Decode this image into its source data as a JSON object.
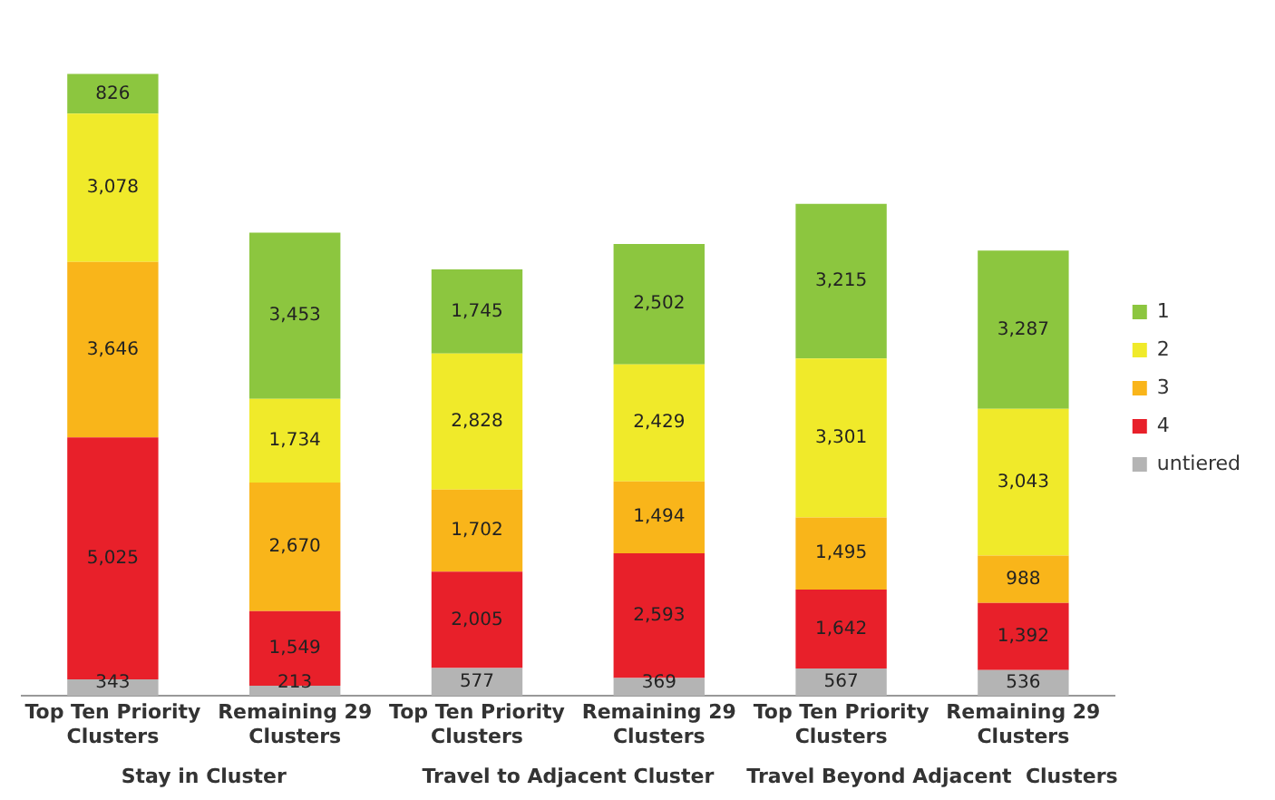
{
  "chart_data": {
    "type": "bar",
    "stacked": true,
    "legend": "right",
    "grid": false,
    "categories": [
      "Top Ten Priority Clusters",
      "Remaining 29 Clusters",
      "Top Ten Priority Clusters",
      "Remaining 29 Clusters",
      "Top Ten Priority Clusters",
      "Remaining 29 Clusters"
    ],
    "annotations": [
      "Stay in Cluster",
      "Travel to Adjacent Cluster",
      "Travel Beyond Adjacent  Clusters"
    ],
    "series": [
      {
        "name": "untiered",
        "color": "#b4b4b4",
        "values": [
          343,
          213,
          577,
          369,
          567,
          536
        ],
        "value_labels": [
          "343",
          "213",
          "577",
          "369",
          "567",
          "536"
        ]
      },
      {
        "name": "4",
        "color": "#e8202a",
        "values": [
          5025,
          1549,
          2005,
          2593,
          1642,
          1392
        ],
        "value_labels": [
          "5,025",
          "1,549",
          "2,005",
          "2,593",
          "1,642",
          "1,392"
        ]
      },
      {
        "name": "3",
        "color": "#f9b51a",
        "values": [
          3646,
          2670,
          1702,
          1494,
          1495,
          988
        ],
        "value_labels": [
          "3,646",
          "2,670",
          "1,702",
          "1,494",
          "1,495",
          "988"
        ]
      },
      {
        "name": "2",
        "color": "#f0ea2a",
        "values": [
          3078,
          1734,
          2828,
          2429,
          3301,
          3043
        ],
        "value_labels": [
          "3,078",
          "1,734",
          "2,828",
          "2,429",
          "3,301",
          "3,043"
        ]
      },
      {
        "name": "1",
        "color": "#8cc63f",
        "values": [
          826,
          3453,
          1745,
          2502,
          3215,
          3287
        ],
        "value_labels": [
          "826",
          "3,453",
          "1,745",
          "2,502",
          "3,215",
          "3,287"
        ]
      }
    ]
  }
}
